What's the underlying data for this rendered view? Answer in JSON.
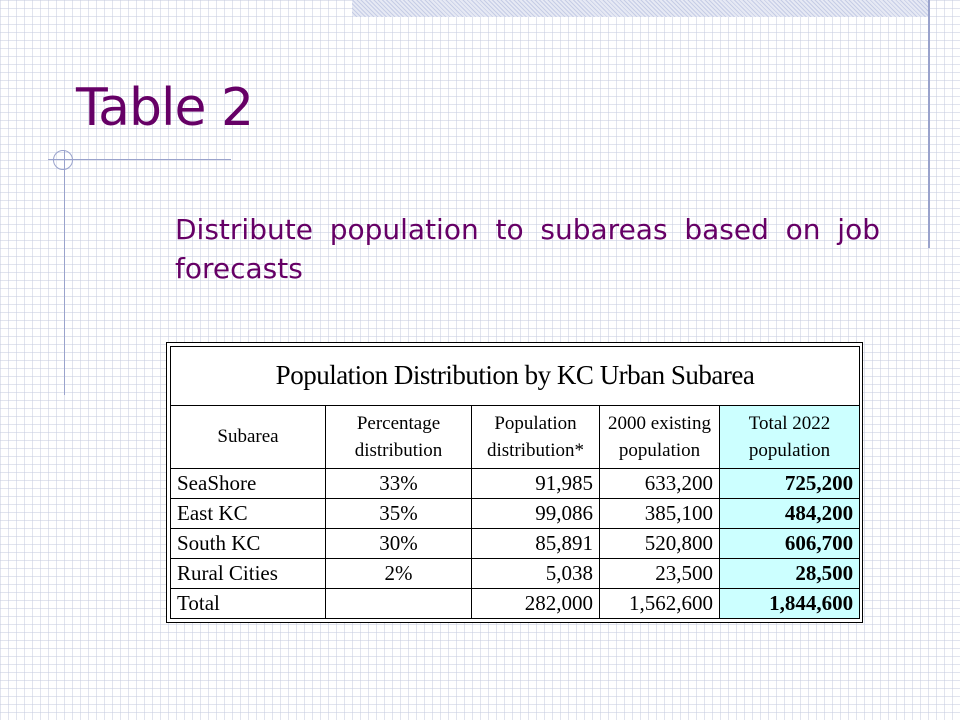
{
  "slide": {
    "title": "Table 2",
    "bullet": "Distribute population to subareas based on job forecasts"
  },
  "table": {
    "caption": "Population Distribution by KC Urban Subarea",
    "headers": {
      "subarea": "Subarea",
      "pct_line1": "Percentage",
      "pct_line2": "distribution",
      "popdist_line1": "Population",
      "popdist_line2": "distribution*",
      "existing_line1": "2000 existing",
      "existing_line2": "population",
      "total_line1": "Total 2022",
      "total_line2": "population"
    },
    "rows": [
      {
        "subarea": "SeaShore",
        "pct": "33%",
        "pop_dist": "91,985",
        "existing": "633,200",
        "total": "725,200"
      },
      {
        "subarea": "East KC",
        "pct": "35%",
        "pop_dist": "99,086",
        "existing": "385,100",
        "total": "484,200"
      },
      {
        "subarea": "South KC",
        "pct": "30%",
        "pop_dist": "85,891",
        "existing": "520,800",
        "total": "606,700"
      },
      {
        "subarea": "Rural Cities",
        "pct": "2%",
        "pop_dist": "5,038",
        "existing": "23,500",
        "total": "28,500"
      }
    ],
    "total_row": {
      "subarea": "Total",
      "pct": "",
      "pop_dist": "282,000",
      "existing": "1,562,600",
      "total": "1,844,600"
    }
  },
  "colors": {
    "title": "#660066",
    "highlight": "#ccffff",
    "accent_lines": "#9aa3cc"
  }
}
